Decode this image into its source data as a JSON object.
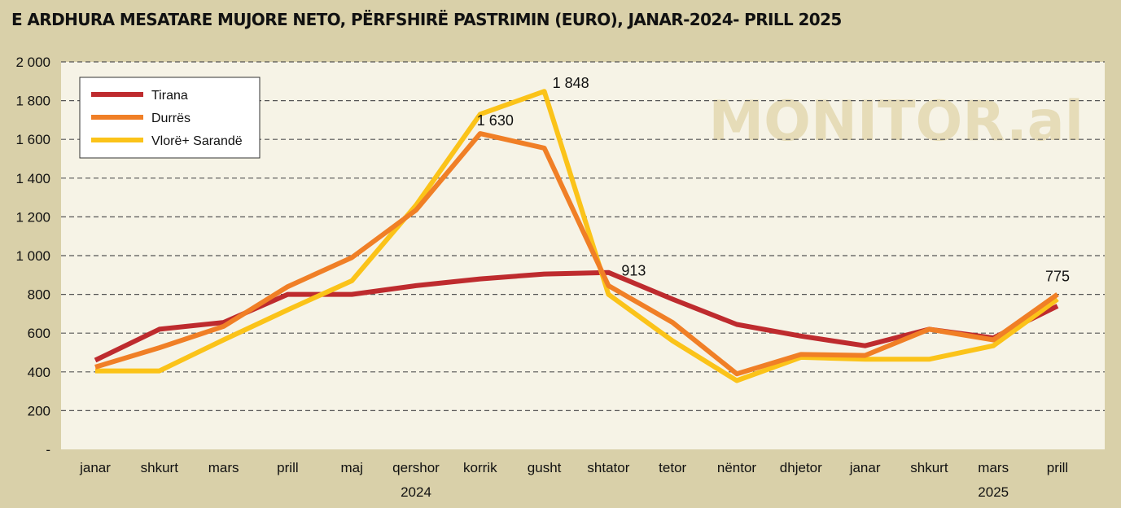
{
  "title": "E ARDHURA MESATARE MUJORE NETO, PËRFSHIRË PASTRIMIN (EURO), JANAR-2024- PRILL 2025",
  "watermark": "MONITOR.al",
  "colors": {
    "background": "#d9d0a9",
    "plot_background": "#f6f3e6",
    "grid": "#555555"
  },
  "chart_data": {
    "type": "line",
    "categories": [
      "janar",
      "shkurt",
      "mars",
      "prill",
      "maj",
      "qershor",
      "korrik",
      "gusht",
      "shtator",
      "tetor",
      "nëntor",
      "dhjetor",
      "janar",
      "shkurt",
      "mars",
      "prill"
    ],
    "year_labels": [
      {
        "label": "2024",
        "index": 5
      },
      {
        "label": "2025",
        "index": 14
      }
    ],
    "y_ticks": [
      {
        "value": 0,
        "label": "-"
      },
      {
        "value": 200,
        "label": "200"
      },
      {
        "value": 400,
        "label": "400"
      },
      {
        "value": 600,
        "label": "600"
      },
      {
        "value": 800,
        "label": "800"
      },
      {
        "value": 1000,
        "label": "1 000"
      },
      {
        "value": 1200,
        "label": "1 200"
      },
      {
        "value": 1400,
        "label": "1 400"
      },
      {
        "value": 1600,
        "label": "1 600"
      },
      {
        "value": 1800,
        "label": "1 800"
      },
      {
        "value": 2000,
        "label": "2 000"
      }
    ],
    "ylim": [
      0,
      2000
    ],
    "grid": true,
    "legend_position": "top-left",
    "series": [
      {
        "name": "Tirana",
        "color": "#be2b2e",
        "values": [
          460,
          620,
          655,
          800,
          800,
          845,
          880,
          905,
          913,
          775,
          645,
          585,
          535,
          620,
          575,
          740
        ]
      },
      {
        "name": "Durrës",
        "color": "#f07f26",
        "values": [
          425,
          525,
          635,
          840,
          990,
          1235,
          1630,
          1555,
          845,
          655,
          390,
          490,
          485,
          620,
          565,
          800
        ]
      },
      {
        "name": "Vlorë+ Sarandë",
        "color": "#fbc319",
        "values": [
          405,
          405,
          565,
          720,
          870,
          1260,
          1730,
          1848,
          800,
          560,
          355,
          475,
          465,
          465,
          535,
          775
        ]
      }
    ],
    "annotations": [
      {
        "text": "1 630",
        "series": 1,
        "index": 6
      },
      {
        "text": "1 848",
        "series": 2,
        "index": 7
      },
      {
        "text": "913",
        "series": 0,
        "index": 8
      },
      {
        "text": "775",
        "series": 2,
        "index": 15
      }
    ]
  }
}
